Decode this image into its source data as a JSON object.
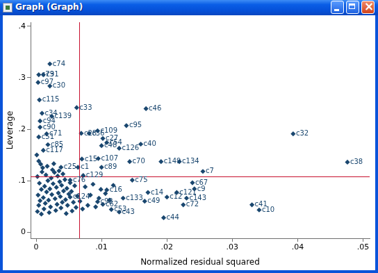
{
  "window": {
    "title": "Graph (Graph)"
  },
  "chart_data": {
    "type": "scatter",
    "x_label": "Normalized residual squared",
    "y_label": "Leverage",
    "x": [
      0.0021,
      0.0004,
      0.0011,
      0.0003,
      0.0021,
      0.0005,
      0.0062,
      0.0168,
      0.0009,
      0.0024,
      0.0006,
      0.0006,
      0.0138,
      0.0094,
      0.0393,
      0.0016,
      0.0069,
      0.0081,
      0.0004,
      0.0102,
      0.0108,
      0.01,
      0.0127,
      0.016,
      0.0011,
      0.0018,
      0.007,
      0.0095,
      0.0143,
      0.0191,
      0.0219,
      0.0476,
      0.0038,
      0.0064,
      0.01,
      0.0255,
      0.0072,
      0.0147,
      0.0239,
      0.0052,
      0.0242,
      0.0108,
      0.0171,
      0.0215,
      0.0133,
      0.0166,
      0.02,
      0.023,
      0.0225,
      0.033,
      0.0341,
      0.0094,
      0.0102,
      0.0115,
      0.0127,
      0.0195,
      0.0052,
      0.0002,
      0.0004,
      0.0006,
      0.0003,
      0.0008,
      0.0005,
      0.0002,
      0.0009,
      0.0012,
      0.0014,
      0.0011,
      0.0016,
      0.0013,
      0.0018,
      0.0015,
      0.002,
      0.0022,
      0.0019,
      0.0024,
      0.0021,
      0.0026,
      0.0023,
      0.0028,
      0.003,
      0.0032,
      0.0029,
      0.0034,
      0.0031,
      0.0036,
      0.0033,
      0.0038,
      0.004,
      0.0037,
      0.0042,
      0.0039,
      0.0044,
      0.0046,
      0.0048,
      0.0045,
      0.005,
      0.0047,
      0.0052,
      0.0055,
      0.0057,
      0.0054,
      0.0059,
      0.0061,
      0.0063,
      0.0067,
      0.0071,
      0.0075,
      0.0079,
      0.0083,
      0.0087,
      0.0091,
      0.0096,
      0.0099,
      0.0106,
      0.0112,
      0.0118,
      0.001,
      0.0007,
      0.0004,
      0.0017,
      0.0025,
      0.0035,
      0.0001,
      0.0027,
      0.0041,
      0.0008
    ],
    "values": [
      0.327,
      0.306,
      0.306,
      0.291,
      0.284,
      0.257,
      0.242,
      0.24,
      0.231,
      0.225,
      0.216,
      0.204,
      0.207,
      0.197,
      0.191,
      0.191,
      0.192,
      0.192,
      0.185,
      0.182,
      0.174,
      0.168,
      0.163,
      0.171,
      0.159,
      0.17,
      0.142,
      0.143,
      0.137,
      0.137,
      0.137,
      0.136,
      0.126,
      0.126,
      0.126,
      0.118,
      0.11,
      0.101,
      0.096,
      0.101,
      0.084,
      0.082,
      0.077,
      0.077,
      0.066,
      0.06,
      0.068,
      0.066,
      0.053,
      0.053,
      0.043,
      0.059,
      0.054,
      0.044,
      0.039,
      0.028,
      0.068,
      0.04,
      0.052,
      0.061,
      0.072,
      0.083,
      0.095,
      0.108,
      0.117,
      0.045,
      0.056,
      0.067,
      0.078,
      0.089,
      0.1,
      0.111,
      0.038,
      0.049,
      0.062,
      0.073,
      0.084,
      0.094,
      0.105,
      0.116,
      0.042,
      0.054,
      0.065,
      0.076,
      0.087,
      0.098,
      0.109,
      0.047,
      0.058,
      0.069,
      0.08,
      0.091,
      0.102,
      0.036,
      0.052,
      0.063,
      0.074,
      0.085,
      0.096,
      0.041,
      0.058,
      0.079,
      0.09,
      0.048,
      0.07,
      0.06,
      0.045,
      0.088,
      0.052,
      0.072,
      0.093,
      0.049,
      0.066,
      0.083,
      0.075,
      0.062,
      0.091,
      0.125,
      0.132,
      0.138,
      0.128,
      0.121,
      0.119,
      0.15,
      0.133,
      0.113,
      0.035
    ],
    "point_labels": [
      "c74",
      "c79",
      "c31",
      "c97",
      "c30",
      "c115",
      "c33",
      "c46",
      "c34",
      "c139",
      "c94",
      "c90",
      "c95",
      "c109",
      "c32",
      "c71",
      "c28",
      "c36",
      "c51",
      "c27",
      "c54",
      "c48",
      "c126",
      "c40",
      "c117",
      "c85",
      "c15",
      "c107",
      "c70",
      "c149",
      "c134",
      "c38",
      "c25",
      "c1",
      "c89",
      "c7",
      "c129",
      "c75",
      "c67",
      "c76",
      "c9",
      "c16",
      "c14",
      "c121",
      "c133",
      "c49",
      "c12",
      "c143",
      "c72",
      "c41",
      "c10",
      "c93",
      "c62",
      "c53",
      "c43",
      "c44",
      "c124",
      null,
      null,
      null,
      null,
      null,
      null,
      null,
      null,
      null,
      null,
      null,
      null,
      null,
      null,
      null,
      null,
      null,
      null,
      null,
      null,
      null,
      null,
      null,
      null,
      null,
      null,
      null,
      null,
      null,
      null,
      null,
      null,
      null,
      null,
      null,
      null,
      null,
      null,
      null,
      null,
      null,
      null,
      null,
      null,
      null,
      null,
      null,
      null,
      null,
      null,
      null,
      null,
      null,
      null,
      null,
      null,
      null,
      null,
      null,
      null,
      null,
      null,
      null,
      null,
      null,
      null,
      null,
      null,
      null,
      null
    ],
    "color": "#1a476f",
    "marker": "diamond",
    "xlim": [
      -0.00085,
      0.051
    ],
    "ylim": [
      -0.012,
      0.408
    ],
    "xticks": [
      0,
      {
        "value": 0.01,
        "label": ".01"
      },
      {
        "value": 0.02,
        "label": ".02"
      },
      {
        "value": 0.03,
        "label": ".03"
      },
      {
        "value": 0.04,
        "label": ".04"
      },
      {
        "value": 0.05,
        "label": ".05"
      }
    ],
    "yticks": [
      0,
      {
        "value": 0.1,
        "label": ".1"
      },
      {
        "value": 0.2,
        "label": ".2"
      },
      {
        "value": 0.3,
        "label": ".3"
      },
      {
        "value": 0.4,
        "label": ".4"
      }
    ],
    "grid": false,
    "reference_lines": {
      "x": 0.0066,
      "y": 0.108,
      "color": "#c8102e"
    }
  }
}
